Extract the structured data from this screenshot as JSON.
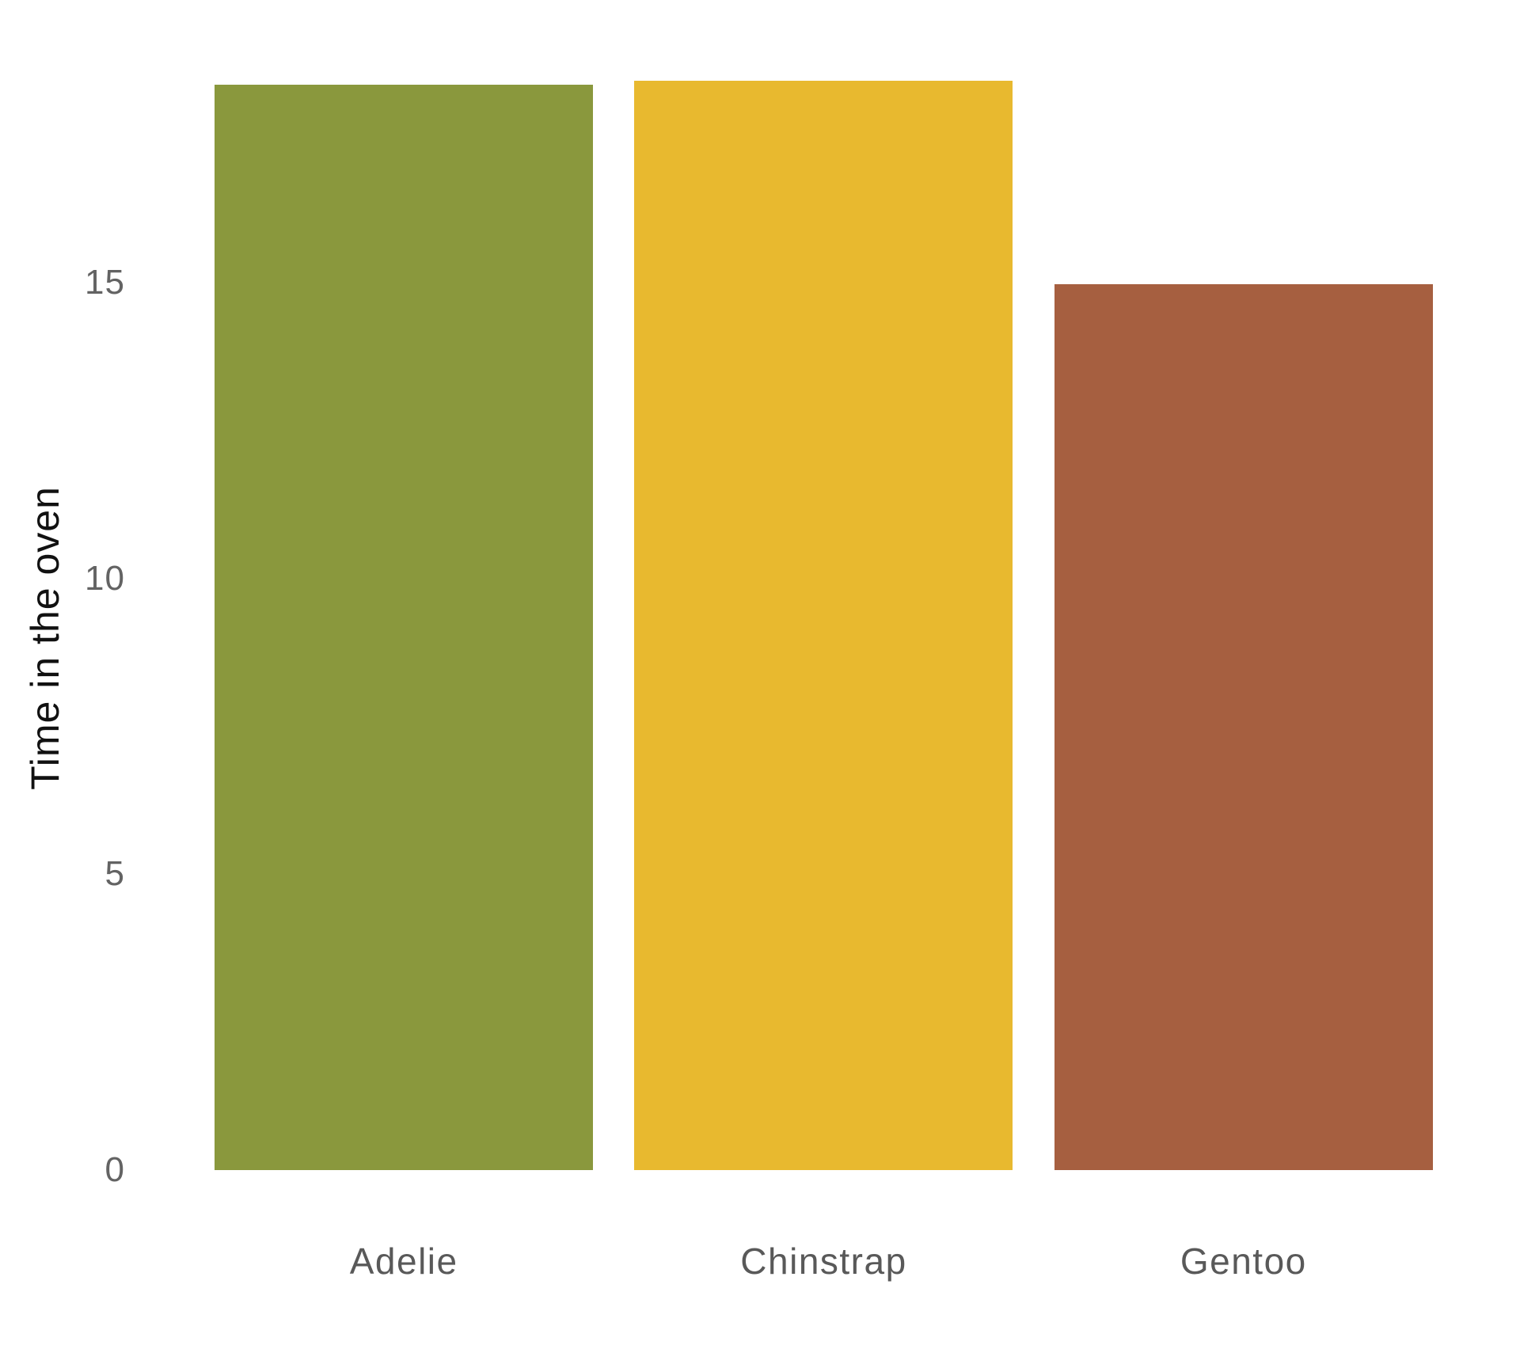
{
  "chart_data": {
    "type": "bar",
    "title": "",
    "ylabel": "Time in the oven",
    "xlabel": "",
    "categories": [
      "Adelie",
      "Chinstrap",
      "Gentoo"
    ],
    "values": [
      18.35,
      18.42,
      14.98
    ],
    "bar_colors": [
      "#8a983d",
      "#e8b92f",
      "#a65f40"
    ],
    "ylim": [
      0,
      19.78
    ],
    "yticks": [
      0,
      5,
      10,
      15
    ],
    "grid": false,
    "axis_lines": false,
    "legend_position": "none",
    "tick_label_color": "#636363",
    "category_label_color": "#595959",
    "axis_label_color": "#111111",
    "background_color": "#ffffff"
  }
}
